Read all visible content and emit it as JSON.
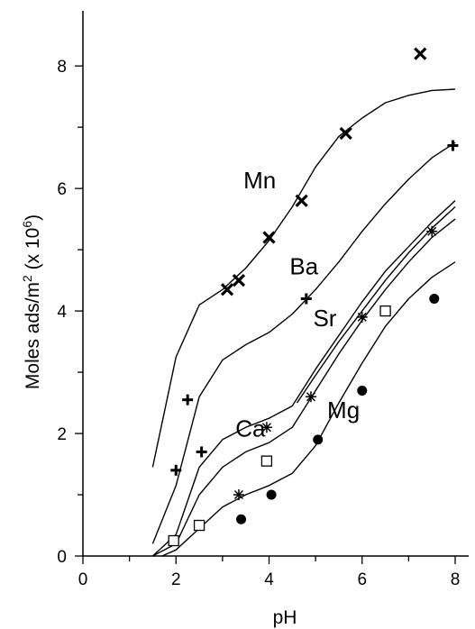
{
  "chart_data": {
    "type": "scatter",
    "title": "",
    "xlabel": "pH",
    "ylabel": "Moles ads/m² (x 10⁶)",
    "ylabel_parts": {
      "main": "Moles ads/m",
      "sup1": "2",
      "mid": " (x 10",
      "sup2": "6",
      "end": ")"
    },
    "xlim": [
      0,
      8
    ],
    "ylim": [
      0,
      8.9
    ],
    "xticks": [
      0,
      2,
      4,
      6,
      8
    ],
    "yticks": [
      0,
      2,
      4,
      6,
      8
    ],
    "xtick_labels": [
      "0",
      "2",
      "4",
      "6",
      "8"
    ],
    "ytick_labels": [
      "0",
      "2",
      "4",
      "6",
      "8"
    ],
    "grid": false,
    "legend": "none",
    "series": [
      {
        "name": "Mn",
        "marker": "x",
        "label_at": [
          3.8,
          6.0
        ],
        "points": [
          [
            3.1,
            4.35
          ],
          [
            3.35,
            4.5
          ],
          [
            4.0,
            5.2
          ],
          [
            4.7,
            5.8
          ],
          [
            5.65,
            6.9
          ],
          [
            7.25,
            8.2
          ]
        ],
        "curve": [
          [
            1.5,
            1.45
          ],
          [
            2.0,
            3.25
          ],
          [
            2.5,
            4.1
          ],
          [
            3.0,
            4.35
          ],
          [
            3.5,
            4.7
          ],
          [
            4.0,
            5.15
          ],
          [
            4.5,
            5.7
          ],
          [
            5.0,
            6.35
          ],
          [
            5.5,
            6.85
          ],
          [
            6.0,
            7.15
          ],
          [
            6.5,
            7.4
          ],
          [
            7.0,
            7.52
          ],
          [
            7.5,
            7.6
          ],
          [
            8.0,
            7.62
          ]
        ]
      },
      {
        "name": "Ba",
        "marker": "plus",
        "label_at": [
          4.75,
          4.6
        ],
        "points": [
          [
            2.0,
            1.4
          ],
          [
            2.25,
            2.55
          ],
          [
            2.55,
            1.7
          ],
          [
            4.8,
            4.2
          ],
          [
            7.95,
            6.7
          ]
        ],
        "curve": [
          [
            1.5,
            0.2
          ],
          [
            2.0,
            1.15
          ],
          [
            2.5,
            2.6
          ],
          [
            3.0,
            3.2
          ],
          [
            3.5,
            3.45
          ],
          [
            4.0,
            3.65
          ],
          [
            4.5,
            3.95
          ],
          [
            5.0,
            4.35
          ],
          [
            5.5,
            4.8
          ],
          [
            6.0,
            5.3
          ],
          [
            6.5,
            5.75
          ],
          [
            7.0,
            6.15
          ],
          [
            7.5,
            6.5
          ],
          [
            8.0,
            6.75
          ]
        ]
      },
      {
        "name": "Sr",
        "marker": "asterisk",
        "label_at": [
          5.2,
          3.75
        ],
        "points": [
          [
            3.35,
            1.0
          ],
          [
            3.95,
            2.1
          ],
          [
            4.9,
            2.6
          ],
          [
            6.0,
            3.9
          ],
          [
            7.5,
            5.3
          ]
        ],
        "curve": [
          [
            1.5,
            0.0
          ],
          [
            2.0,
            0.35
          ],
          [
            2.5,
            1.45
          ],
          [
            3.0,
            1.9
          ],
          [
            3.5,
            2.1
          ],
          [
            4.0,
            2.25
          ],
          [
            4.5,
            2.45
          ],
          [
            5.0,
            3.05
          ],
          [
            5.5,
            3.6
          ],
          [
            6.0,
            4.15
          ],
          [
            6.5,
            4.65
          ],
          [
            7.0,
            5.05
          ],
          [
            7.5,
            5.45
          ],
          [
            8.0,
            5.8
          ]
        ]
      },
      {
        "name": "Ca",
        "marker": "square",
        "label_at": [
          3.6,
          1.95
        ],
        "points": [
          [
            1.95,
            0.25
          ],
          [
            2.5,
            0.5
          ],
          [
            3.95,
            1.55
          ],
          [
            6.5,
            4.0
          ]
        ],
        "curve": [
          [
            1.5,
            0.0
          ],
          [
            2.0,
            0.2
          ],
          [
            2.5,
            1.0
          ],
          [
            3.0,
            1.45
          ],
          [
            3.5,
            1.7
          ],
          [
            4.0,
            1.85
          ],
          [
            4.5,
            2.1
          ],
          [
            5.0,
            2.7
          ],
          [
            5.5,
            3.3
          ],
          [
            6.0,
            3.85
          ],
          [
            6.5,
            4.35
          ],
          [
            7.0,
            4.8
          ],
          [
            7.5,
            5.2
          ],
          [
            8.0,
            5.5
          ]
        ],
        "curve2": [
          [
            4.6,
            2.5
          ],
          [
            5.0,
            2.95
          ],
          [
            5.5,
            3.5
          ],
          [
            6.0,
            4.0
          ],
          [
            6.5,
            4.5
          ],
          [
            7.0,
            4.95
          ],
          [
            7.5,
            5.35
          ],
          [
            8.0,
            5.7
          ]
        ]
      },
      {
        "name": "Mg",
        "marker": "dot",
        "label_at": [
          5.6,
          2.25
        ],
        "points": [
          [
            3.4,
            0.6
          ],
          [
            4.05,
            1.0
          ],
          [
            5.05,
            1.9
          ],
          [
            6.0,
            2.7
          ],
          [
            7.55,
            4.2
          ]
        ],
        "curve": [
          [
            1.7,
            0.0
          ],
          [
            2.0,
            0.1
          ],
          [
            2.5,
            0.45
          ],
          [
            3.0,
            0.8
          ],
          [
            3.5,
            1.0
          ],
          [
            4.0,
            1.15
          ],
          [
            4.5,
            1.35
          ],
          [
            5.0,
            1.8
          ],
          [
            5.5,
            2.5
          ],
          [
            6.0,
            3.15
          ],
          [
            6.5,
            3.75
          ],
          [
            7.0,
            4.2
          ],
          [
            7.5,
            4.55
          ],
          [
            8.0,
            4.8
          ]
        ]
      }
    ]
  }
}
